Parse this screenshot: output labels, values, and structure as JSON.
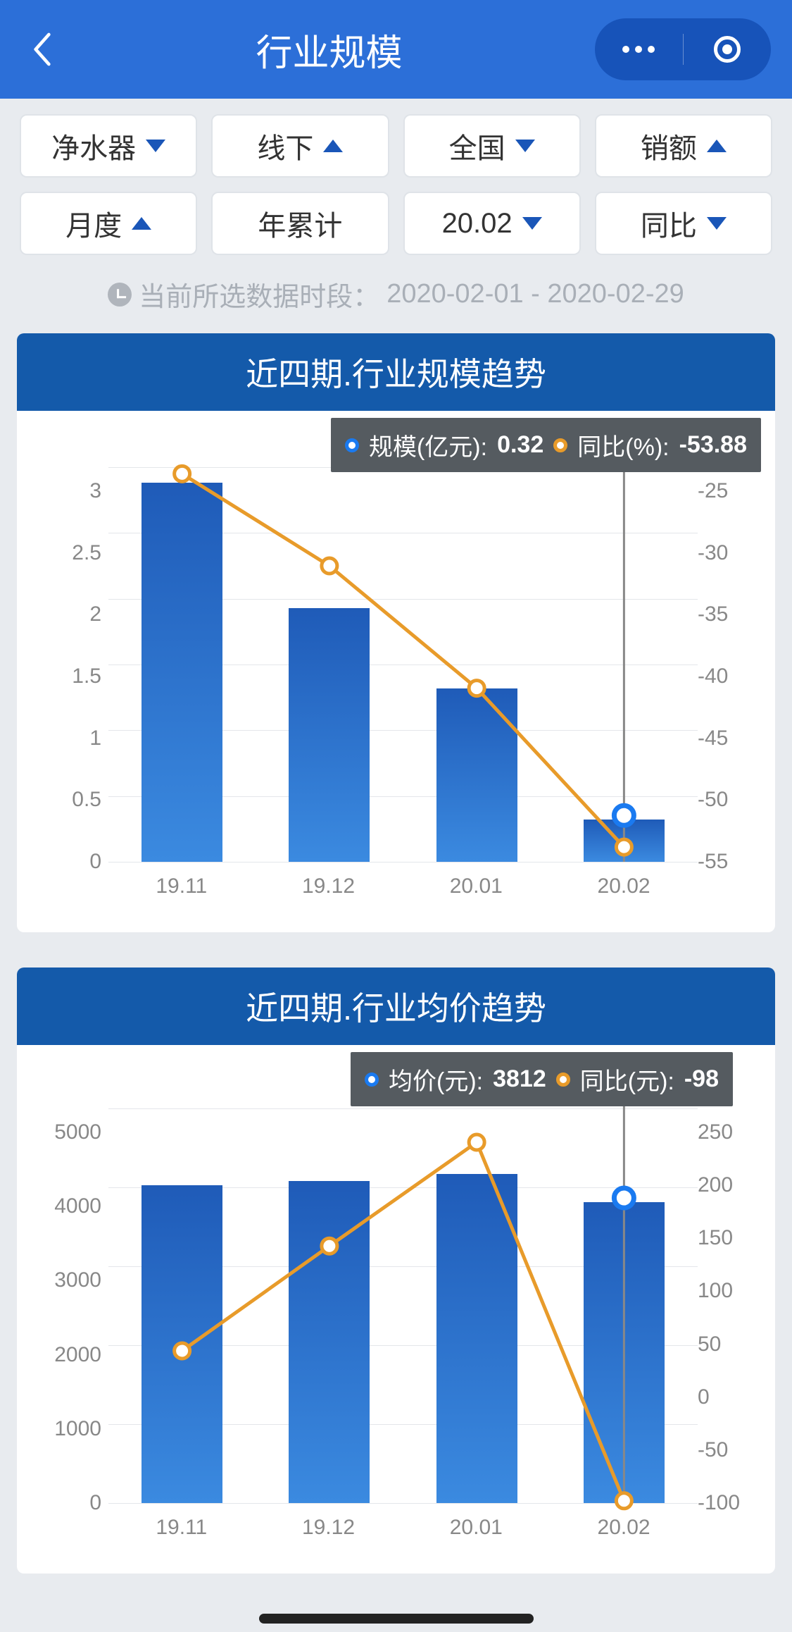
{
  "header": {
    "title": "行业规模"
  },
  "filters": [
    {
      "label": "净水器",
      "arrow": "down"
    },
    {
      "label": "线下",
      "arrow": "up"
    },
    {
      "label": "全国",
      "arrow": "down"
    },
    {
      "label": "销额",
      "arrow": "up"
    },
    {
      "label": "月度",
      "arrow": "up"
    },
    {
      "label": "年累计",
      "arrow": "none"
    },
    {
      "label": "20.02",
      "arrow": "down"
    },
    {
      "label": "同比",
      "arrow": "down"
    }
  ],
  "date_info": {
    "prefix": "当前所选数据时段：",
    "range": "2020-02-01 - 2020-02-29"
  },
  "chart1": {
    "title": "近四期.行业规模趋势",
    "tooltip": {
      "series1_label": "规模(亿元):",
      "series1_value": "0.32",
      "series2_label": "同比(%):",
      "series2_value": "-53.88"
    },
    "type": "bar+line",
    "categories": [
      "19.11",
      "19.12",
      "20.01",
      "20.02"
    ],
    "bar_values": [
      2.88,
      1.93,
      1.32,
      0.32
    ],
    "line_values": [
      -25.5,
      -32.5,
      -41.8,
      -53.88
    ],
    "y_left": {
      "min": 0,
      "max": 3,
      "step": 0.5,
      "ticks": [
        "3",
        "2.5",
        "2",
        "1.5",
        "1",
        "0.5",
        "0"
      ]
    },
    "y_right": {
      "min": -55,
      "max": -25,
      "step": 5,
      "ticks": [
        "-25",
        "-30",
        "-35",
        "-40",
        "-45",
        "-50",
        "-55"
      ]
    },
    "bar_color_top": "#1f5bb8",
    "bar_color_bottom": "#3b8ae0",
    "line_color": "#e89b2a",
    "highlight_marker_color": "#1a7af0",
    "grid_color": "#e4e6ea",
    "bg": "#ffffff",
    "bar_width_ratio": 0.55,
    "tooltip_bg": "#555b60"
  },
  "chart2": {
    "title": "近四期.行业均价趋势",
    "tooltip": {
      "series1_label": "均价(元):",
      "series1_value": "3812",
      "series2_label": "同比(元):",
      "series2_value": "-98"
    },
    "type": "bar+line",
    "categories": [
      "19.11",
      "19.12",
      "20.01",
      "20.02"
    ],
    "bar_values": [
      4030,
      4080,
      4170,
      3812
    ],
    "line_values": [
      35,
      128,
      220,
      -98
    ],
    "y_left": {
      "min": 0,
      "max": 5000,
      "step": 1000,
      "ticks": [
        "5000",
        "4000",
        "3000",
        "2000",
        "1000",
        "0"
      ]
    },
    "y_right": {
      "min": -100,
      "max": 250,
      "step": 50,
      "ticks": [
        "250",
        "200",
        "150",
        "100",
        "50",
        "0",
        "-50",
        "-100"
      ]
    },
    "bar_color_top": "#1f5bb8",
    "bar_color_bottom": "#3b8ae0",
    "line_color": "#e89b2a",
    "highlight_marker_color": "#1a7af0",
    "grid_color": "#e4e6ea",
    "bg": "#ffffff",
    "bar_width_ratio": 0.55,
    "tooltip_bg": "#555b60"
  }
}
